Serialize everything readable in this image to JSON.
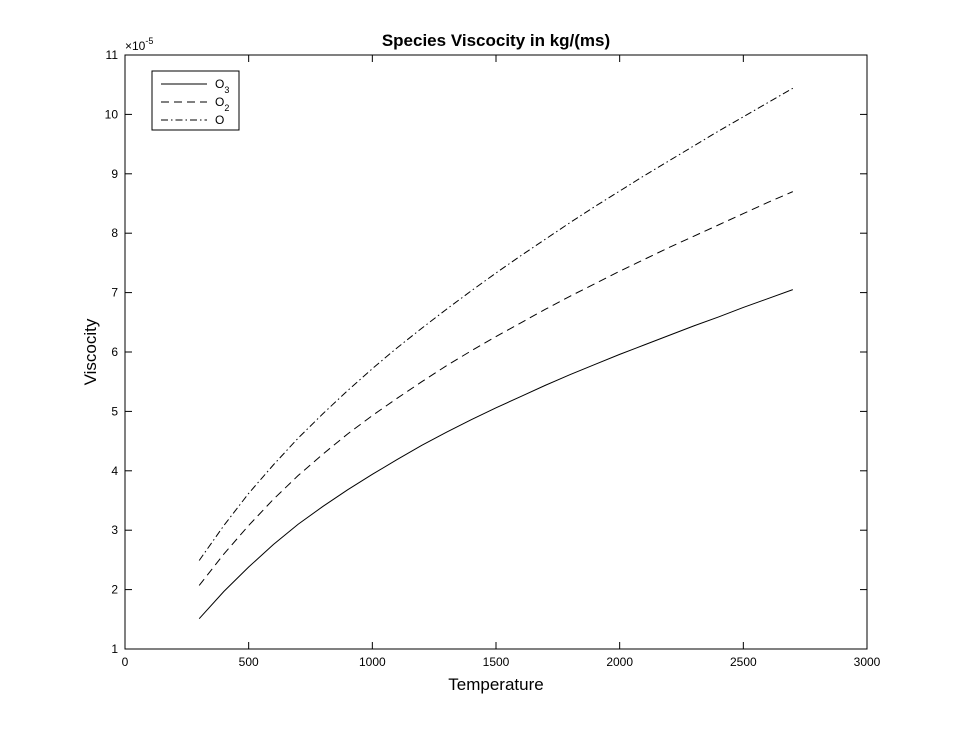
{
  "chart_data": {
    "type": "line",
    "title": "Species Viscocity in kg/(ms)",
    "xlabel": "Temperature",
    "ylabel": "Viscocity",
    "y_exponent_label": "×10",
    "y_exponent_power": "-5",
    "xlim": [
      0,
      3000
    ],
    "ylim": [
      1,
      11
    ],
    "x_ticks": [
      0,
      500,
      1000,
      1500,
      2000,
      2500,
      3000
    ],
    "y_ticks": [
      1,
      2,
      3,
      4,
      5,
      6,
      7,
      8,
      9,
      10,
      11
    ],
    "grid": false,
    "legend_position": "top-left",
    "x": [
      300,
      400,
      500,
      600,
      700,
      800,
      900,
      1000,
      1100,
      1200,
      1300,
      1400,
      1500,
      1600,
      1700,
      1800,
      1900,
      2000,
      2100,
      2200,
      2300,
      2400,
      2500,
      2600,
      2700
    ],
    "series": [
      {
        "name_base": "O",
        "name_sub": "3",
        "style": "solid",
        "values": [
          1.51,
          1.97,
          2.38,
          2.76,
          3.1,
          3.4,
          3.68,
          3.94,
          4.19,
          4.43,
          4.65,
          4.86,
          5.06,
          5.25,
          5.44,
          5.62,
          5.79,
          5.96,
          6.12,
          6.28,
          6.44,
          6.59,
          6.75,
          6.9,
          7.05
        ]
      },
      {
        "name_base": "O",
        "name_sub": "2",
        "style": "dashed",
        "values": [
          2.07,
          2.6,
          3.08,
          3.52,
          3.92,
          4.28,
          4.62,
          4.93,
          5.22,
          5.5,
          5.77,
          6.02,
          6.26,
          6.49,
          6.72,
          6.94,
          7.15,
          7.36,
          7.56,
          7.76,
          7.95,
          8.14,
          8.33,
          8.52,
          8.7
        ]
      },
      {
        "name_base": "O",
        "name_sub": "",
        "style": "dashdot",
        "values": [
          2.49,
          3.08,
          3.62,
          4.1,
          4.55,
          4.96,
          5.35,
          5.72,
          6.07,
          6.4,
          6.72,
          7.03,
          7.33,
          7.62,
          7.9,
          8.18,
          8.45,
          8.71,
          8.97,
          9.22,
          9.47,
          9.72,
          9.96,
          10.2,
          10.44
        ]
      }
    ]
  }
}
